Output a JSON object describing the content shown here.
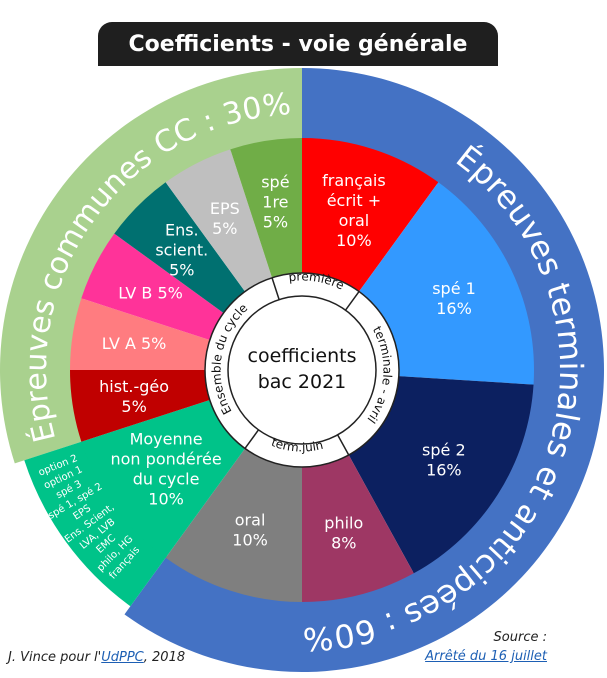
{
  "title": "Coefficients - voie générale",
  "center": {
    "line1": "coefficients",
    "line2": "bac 2021"
  },
  "ring_labels": {
    "premiere": "première",
    "terminale_avril": "terminale - avril",
    "term_juin": "term.juin",
    "ensemble": "Ensemble du cycle"
  },
  "arcs": {
    "cc": "Épreuves communes CC : 30%",
    "terminales": "Épreuves terminales et anticipées : 60%"
  },
  "moyenne_list": [
    "français",
    "philo, HG",
    "EMC",
    "LVA, LVB",
    "Ens. Scient,",
    "EPS",
    "spé 1, spé 2",
    "spé 3",
    "option 1",
    "option 2"
  ],
  "colors": {
    "cc_ring": "#a9d18e",
    "term_ring": "#4472c4",
    "moyenne": "#00c389"
  },
  "segments": [
    {
      "name": "francais",
      "lines": [
        "français",
        "écrit +",
        "oral",
        "10%"
      ],
      "value": 10,
      "color": "#ff0000"
    },
    {
      "name": "spe1",
      "lines": [
        "spé 1",
        "16%"
      ],
      "value": 16,
      "color": "#3399ff"
    },
    {
      "name": "spe2",
      "lines": [
        "spé 2",
        "16%"
      ],
      "value": 16,
      "color": "#0c2060"
    },
    {
      "name": "philo",
      "lines": [
        "philo",
        "8%"
      ],
      "value": 8,
      "color": "#9e3764"
    },
    {
      "name": "oral",
      "lines": [
        "oral",
        "10%"
      ],
      "value": 10,
      "color": "#7f7f7f"
    },
    {
      "name": "moyenne",
      "lines": [
        "Moyenne",
        "non pondérée",
        "du cycle",
        "10%"
      ],
      "value": 10,
      "color": "#00c389"
    },
    {
      "name": "hist-geo",
      "lines": [
        "hist.-géo",
        "5%"
      ],
      "value": 5,
      "color": "#c00000"
    },
    {
      "name": "lva",
      "lines": [
        "LV A 5%"
      ],
      "value": 5,
      "color": "#ff7c80"
    },
    {
      "name": "lvb",
      "lines": [
        "LV B 5%"
      ],
      "value": 5,
      "color": "#ff3399"
    },
    {
      "name": "ens-scient",
      "lines": [
        "Ens.",
        "scient.",
        "5%"
      ],
      "value": 5,
      "color": "#007070"
    },
    {
      "name": "eps",
      "lines": [
        "EPS",
        "5%"
      ],
      "value": 5,
      "color": "#bfbfbf"
    },
    {
      "name": "spe-1re",
      "lines": [
        "spé",
        "1re",
        "5%"
      ],
      "value": 5,
      "color": "#70ad47"
    }
  ],
  "credit": {
    "prefix": "J. Vince pour l'",
    "link": "UdPPC",
    "suffix": ", 2018"
  },
  "source": {
    "label": "Source :",
    "link": "Arrêté du 16 juillet"
  }
}
